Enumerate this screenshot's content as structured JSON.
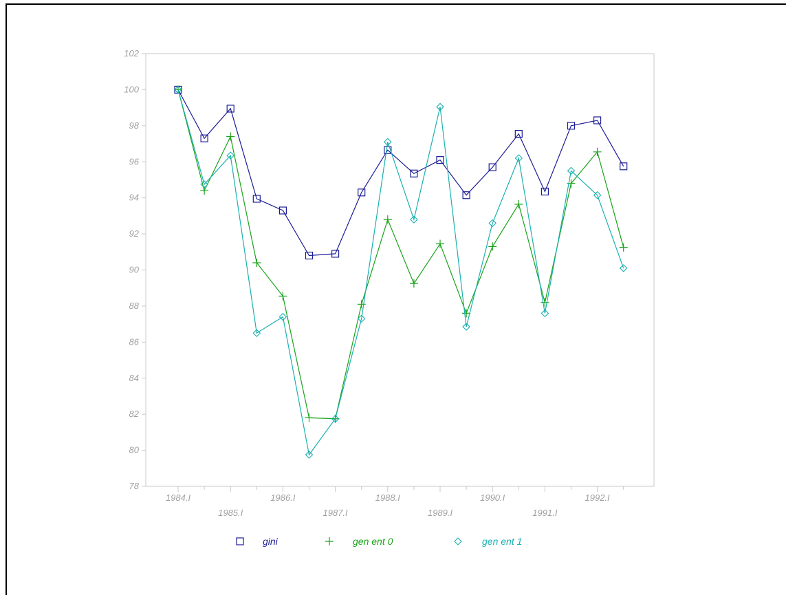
{
  "chart_data": {
    "type": "line",
    "title": "",
    "xlabel": "",
    "ylabel": "",
    "ylim": [
      78,
      102
    ],
    "yticks": [
      78,
      80,
      82,
      84,
      86,
      88,
      90,
      92,
      94,
      96,
      98,
      100,
      102
    ],
    "x_ticks": [
      {
        "label": "1984.I",
        "index": 0
      },
      {
        "label": "1985.I",
        "index": 2
      },
      {
        "label": "1986.I",
        "index": 4
      },
      {
        "label": "1987.I",
        "index": 6
      },
      {
        "label": "1988.I",
        "index": 8
      },
      {
        "label": "1989.I",
        "index": 10
      },
      {
        "label": "1990.I",
        "index": 12
      },
      {
        "label": "1991.I",
        "index": 14
      },
      {
        "label": "1992.I",
        "index": 16
      }
    ],
    "n_points": 18,
    "legend_position": "bottom",
    "grid": false,
    "series": [
      {
        "name": "gini",
        "color": "#1c1c96",
        "marker": "square",
        "values": [
          100.0,
          97.3,
          98.95,
          93.95,
          93.3,
          90.8,
          90.9,
          94.3,
          96.65,
          95.35,
          96.1,
          94.15,
          95.7,
          97.55,
          94.35,
          98.0,
          98.3,
          95.75
        ]
      },
      {
        "name": "gen ent 0",
        "color": "#1aa31a",
        "marker": "plus",
        "values": [
          100.0,
          94.4,
          97.4,
          90.4,
          88.55,
          81.8,
          81.75,
          88.1,
          92.8,
          89.25,
          91.45,
          87.6,
          91.3,
          93.65,
          88.2,
          94.8,
          96.55,
          91.25
        ]
      },
      {
        "name": "gen ent 1",
        "color": "#1ab0b0",
        "marker": "diamond",
        "values": [
          100.0,
          94.75,
          96.35,
          86.5,
          87.4,
          79.75,
          81.75,
          87.3,
          97.1,
          92.8,
          99.05,
          86.85,
          92.6,
          96.2,
          87.6,
          95.5,
          94.15,
          90.1
        ]
      }
    ]
  }
}
